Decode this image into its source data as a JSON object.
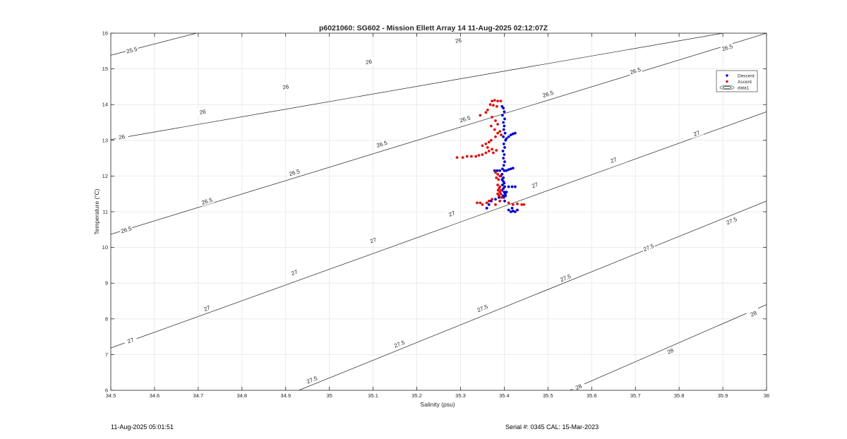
{
  "chart_data": {
    "type": "scatter",
    "title": "p6021060: SG602 - Mission Ellett Array 14 11-Aug-2025 02:12:07Z",
    "xlabel": "Salinity (psu)",
    "ylabel": "Temperature (°C)",
    "xlim": [
      34.5,
      36
    ],
    "ylim": [
      6,
      16
    ],
    "xticks": [
      "34.5",
      "34.6",
      "34.7",
      "34.8",
      "34.9",
      "35",
      "35.1",
      "35.2",
      "35.3",
      "35.4",
      "35.5",
      "35.6",
      "35.7",
      "35.8",
      "35.9",
      "36"
    ],
    "yticks": [
      "6",
      "7",
      "8",
      "9",
      "10",
      "11",
      "12",
      "13",
      "14",
      "15",
      "16"
    ],
    "grid": true,
    "legend_position": "top-right",
    "legend": [
      "Descent",
      "Ascent",
      "data1"
    ],
    "colors": {
      "descent": "#0000cc",
      "ascent": "#dd1111",
      "contour": "#222222",
      "grid": "#e6e6e6"
    },
    "series": [
      {
        "name": "Descent",
        "points": [
          [
            35.395,
            13.95
          ],
          [
            35.398,
            13.9
          ],
          [
            35.4,
            13.8
          ],
          [
            35.396,
            13.7
          ],
          [
            35.401,
            13.6
          ],
          [
            35.398,
            13.5
          ],
          [
            35.4,
            13.4
          ],
          [
            35.399,
            13.3
          ],
          [
            35.402,
            13.2
          ],
          [
            35.398,
            13.1
          ],
          [
            35.403,
            13.0
          ],
          [
            35.399,
            12.9
          ],
          [
            35.401,
            12.8
          ],
          [
            35.397,
            12.7
          ],
          [
            35.4,
            12.6
          ],
          [
            35.398,
            12.5
          ],
          [
            35.401,
            12.4
          ],
          [
            35.399,
            12.3
          ],
          [
            35.396,
            12.2
          ],
          [
            35.4,
            12.15
          ],
          [
            35.395,
            11.9
          ],
          [
            35.398,
            11.85
          ],
          [
            35.4,
            11.8
          ],
          [
            35.396,
            11.75
          ],
          [
            35.401,
            11.7
          ],
          [
            35.398,
            11.65
          ],
          [
            35.395,
            11.6
          ],
          [
            35.4,
            11.55
          ],
          [
            35.402,
            11.5
          ],
          [
            35.397,
            11.45
          ],
          [
            35.403,
            11.45
          ],
          [
            35.399,
            11.4
          ],
          [
            35.405,
            11.55
          ],
          [
            35.401,
            11.3
          ],
          [
            35.378,
            12.15
          ],
          [
            35.384,
            12.15
          ],
          [
            35.39,
            12.15
          ],
          [
            35.405,
            12.15
          ],
          [
            35.41,
            12.18
          ],
          [
            35.415,
            12.2
          ],
          [
            35.42,
            12.22
          ],
          [
            35.405,
            13.05
          ],
          [
            35.41,
            13.1
          ],
          [
            35.415,
            13.15
          ],
          [
            35.42,
            13.18
          ],
          [
            35.425,
            13.2
          ],
          [
            35.41,
            11.7
          ],
          [
            35.418,
            11.7
          ],
          [
            35.425,
            11.7
          ],
          [
            35.41,
            11.05
          ],
          [
            35.415,
            11.0
          ],
          [
            35.42,
            11.02
          ],
          [
            35.425,
            11.0
          ],
          [
            35.43,
            11.05
          ],
          [
            35.418,
            11.1
          ],
          [
            35.36,
            11.1
          ],
          [
            35.365,
            11.2
          ],
          [
            35.37,
            11.3
          ],
          [
            35.38,
            11.35
          ],
          [
            35.388,
            11.4
          ],
          [
            35.395,
            12.05
          ],
          [
            35.398,
            11.95
          ],
          [
            35.392,
            12.0
          ]
        ]
      },
      {
        "name": "Ascent",
        "points": [
          [
            35.372,
            14.1
          ],
          [
            35.378,
            14.12
          ],
          [
            35.385,
            14.1
          ],
          [
            35.392,
            14.1
          ],
          [
            35.368,
            14.0
          ],
          [
            35.375,
            13.98
          ],
          [
            35.383,
            13.95
          ],
          [
            35.362,
            13.85
          ],
          [
            35.358,
            13.78
          ],
          [
            35.345,
            13.7
          ],
          [
            35.372,
            13.65
          ],
          [
            35.38,
            13.55
          ],
          [
            35.385,
            13.45
          ],
          [
            35.37,
            13.4
          ],
          [
            35.378,
            13.3
          ],
          [
            35.39,
            13.25
          ],
          [
            35.385,
            13.2
          ],
          [
            35.393,
            13.15
          ],
          [
            35.38,
            13.1
          ],
          [
            35.37,
            13.0
          ],
          [
            35.365,
            12.95
          ],
          [
            35.358,
            12.9
          ],
          [
            35.35,
            12.85
          ],
          [
            35.362,
            12.8
          ],
          [
            35.372,
            12.75
          ],
          [
            35.365,
            12.7
          ],
          [
            35.358,
            12.65
          ],
          [
            35.35,
            12.6
          ],
          [
            35.342,
            12.58
          ],
          [
            35.335,
            12.55
          ],
          [
            35.325,
            12.55
          ],
          [
            35.315,
            12.55
          ],
          [
            35.305,
            12.52
          ],
          [
            35.292,
            12.52
          ],
          [
            35.375,
            12.65
          ],
          [
            35.382,
            12.72
          ],
          [
            35.38,
            12.1
          ],
          [
            35.385,
            12.05
          ],
          [
            35.39,
            12.0
          ],
          [
            35.382,
            11.95
          ],
          [
            35.387,
            11.9
          ],
          [
            35.385,
            11.75
          ],
          [
            35.39,
            11.7
          ],
          [
            35.388,
            11.65
          ],
          [
            35.393,
            11.6
          ],
          [
            35.386,
            11.6
          ],
          [
            35.39,
            11.55
          ],
          [
            35.385,
            11.5
          ],
          [
            35.392,
            11.5
          ],
          [
            35.388,
            11.45
          ],
          [
            35.394,
            11.4
          ],
          [
            35.41,
            11.25
          ],
          [
            35.42,
            11.2
          ],
          [
            35.43,
            11.22
          ],
          [
            35.44,
            11.2
          ],
          [
            35.445,
            11.2
          ],
          [
            35.36,
            11.25
          ],
          [
            35.365,
            11.3
          ],
          [
            35.372,
            11.35
          ],
          [
            35.35,
            11.2
          ],
          [
            35.345,
            11.25
          ],
          [
            35.338,
            11.25
          ],
          [
            35.38,
            11.2
          ],
          [
            35.39,
            11.3
          ]
        ]
      }
    ],
    "contours": [
      {
        "level": 25.5,
        "s0": 34.5,
        "t0": 15.382,
        "s1": 34.696,
        "t1": 16,
        "labels": [
          [
            34.548,
            15.53
          ]
        ]
      },
      {
        "level": 26,
        "s0": 34.5,
        "t0": 13.02,
        "s1": 35.9,
        "t1": 16,
        "labels": [
          [
            34.525,
            13.1
          ],
          [
            34.71,
            13.8
          ],
          [
            34.9,
            14.5
          ],
          [
            35.09,
            15.2
          ],
          [
            35.295,
            15.8
          ]
        ]
      },
      {
        "level": 26.5,
        "s0": 34.5,
        "t0": 10.369,
        "s1": 36,
        "t1": 16,
        "labels": [
          [
            34.535,
            10.5
          ],
          [
            34.72,
            11.3
          ],
          [
            34.92,
            12.1
          ],
          [
            35.12,
            12.9
          ],
          [
            35.31,
            13.6
          ],
          [
            35.5,
            14.3
          ],
          [
            35.7,
            14.95
          ],
          [
            35.91,
            15.6
          ]
        ]
      },
      {
        "level": 27,
        "s0": 34.5,
        "t0": 7.185,
        "s1": 36,
        "t1": 13.8,
        "labels": [
          [
            34.545,
            7.4
          ],
          [
            34.72,
            8.3
          ],
          [
            34.92,
            9.3
          ],
          [
            35.1,
            10.2
          ],
          [
            35.28,
            10.95
          ],
          [
            35.47,
            11.75
          ],
          [
            35.65,
            12.45
          ],
          [
            35.84,
            13.2
          ]
        ]
      },
      {
        "level": 27.5,
        "s0": 34.93,
        "t0": 6,
        "s1": 36,
        "t1": 11.3,
        "labels": [
          [
            34.96,
            6.3
          ],
          [
            35.16,
            7.3
          ],
          [
            35.35,
            8.3
          ],
          [
            35.54,
            9.15
          ],
          [
            35.73,
            10.0
          ],
          [
            35.92,
            10.75
          ]
        ]
      },
      {
        "level": 28,
        "s0": 35.55,
        "t0": 6,
        "s1": 36,
        "t1": 8.4,
        "labels": [
          [
            35.57,
            6.1
          ],
          [
            35.78,
            7.1
          ],
          [
            35.97,
            8.15
          ]
        ]
      }
    ]
  },
  "footer": {
    "timestamp": "11-Aug-2025 05:01:51",
    "serial": "Serial #: 0345  CAL: 15-Mar-2023"
  }
}
